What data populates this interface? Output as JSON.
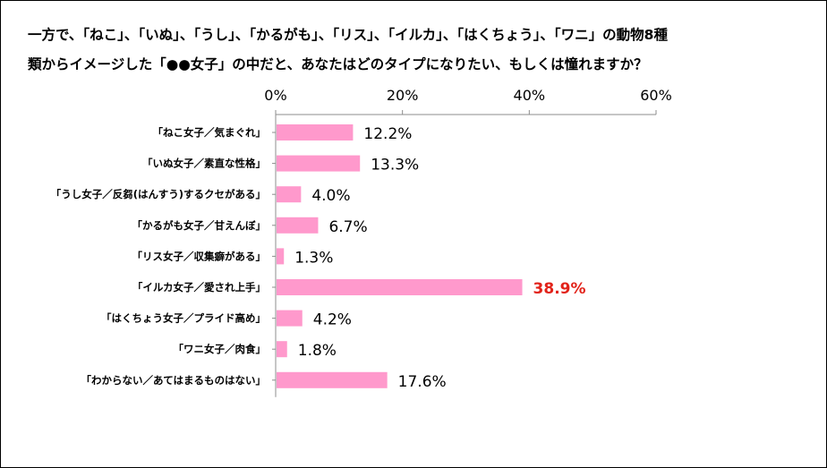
{
  "title": {
    "line1": "一方で、「ねこ」、「いぬ」、「うし」、「かるがも」、「リス」、「イルカ」、「はくちょう」、「ワニ」の動物8種",
    "line2": "類からイメージした「●●女子」の中だと、あなたはどのタイプになりたい、もしくは憧れますか？"
  },
  "chart_data": {
    "type": "bar",
    "orientation": "horizontal",
    "categories": [
      "「ねこ女子／気まぐれ」",
      "「いぬ女子／素直な性格」",
      "「うし女子／反芻(はんすう)するクセがある」",
      "「かるがも女子／甘えんぼ」",
      "「リス女子／収集癖がある」",
      "「イルカ女子／愛され上手」",
      "「はくちょう女子／プライド高め」",
      "「ワニ女子／肉食」",
      "「わからない／あてはまるものはない」"
    ],
    "values": [
      12.2,
      13.3,
      4.0,
      6.7,
      1.3,
      38.9,
      4.2,
      1.8,
      17.6
    ],
    "value_labels": [
      "12.2%",
      "13.3%",
      "4.0%",
      "6.7%",
      "1.3%",
      "38.9%",
      "4.2%",
      "1.8%",
      "17.6%"
    ],
    "highlight_index": 5,
    "xlim": [
      0,
      60
    ],
    "x_ticks": [
      0,
      20,
      40,
      60
    ],
    "x_tick_labels": [
      "0%",
      "20%",
      "40%",
      "60%"
    ],
    "axis_position": "top",
    "grid": false,
    "legend": "none",
    "colors": {
      "bar": "#ff99cc",
      "highlight_label": "#e2231a",
      "axis": "#8c8c8c"
    }
  }
}
